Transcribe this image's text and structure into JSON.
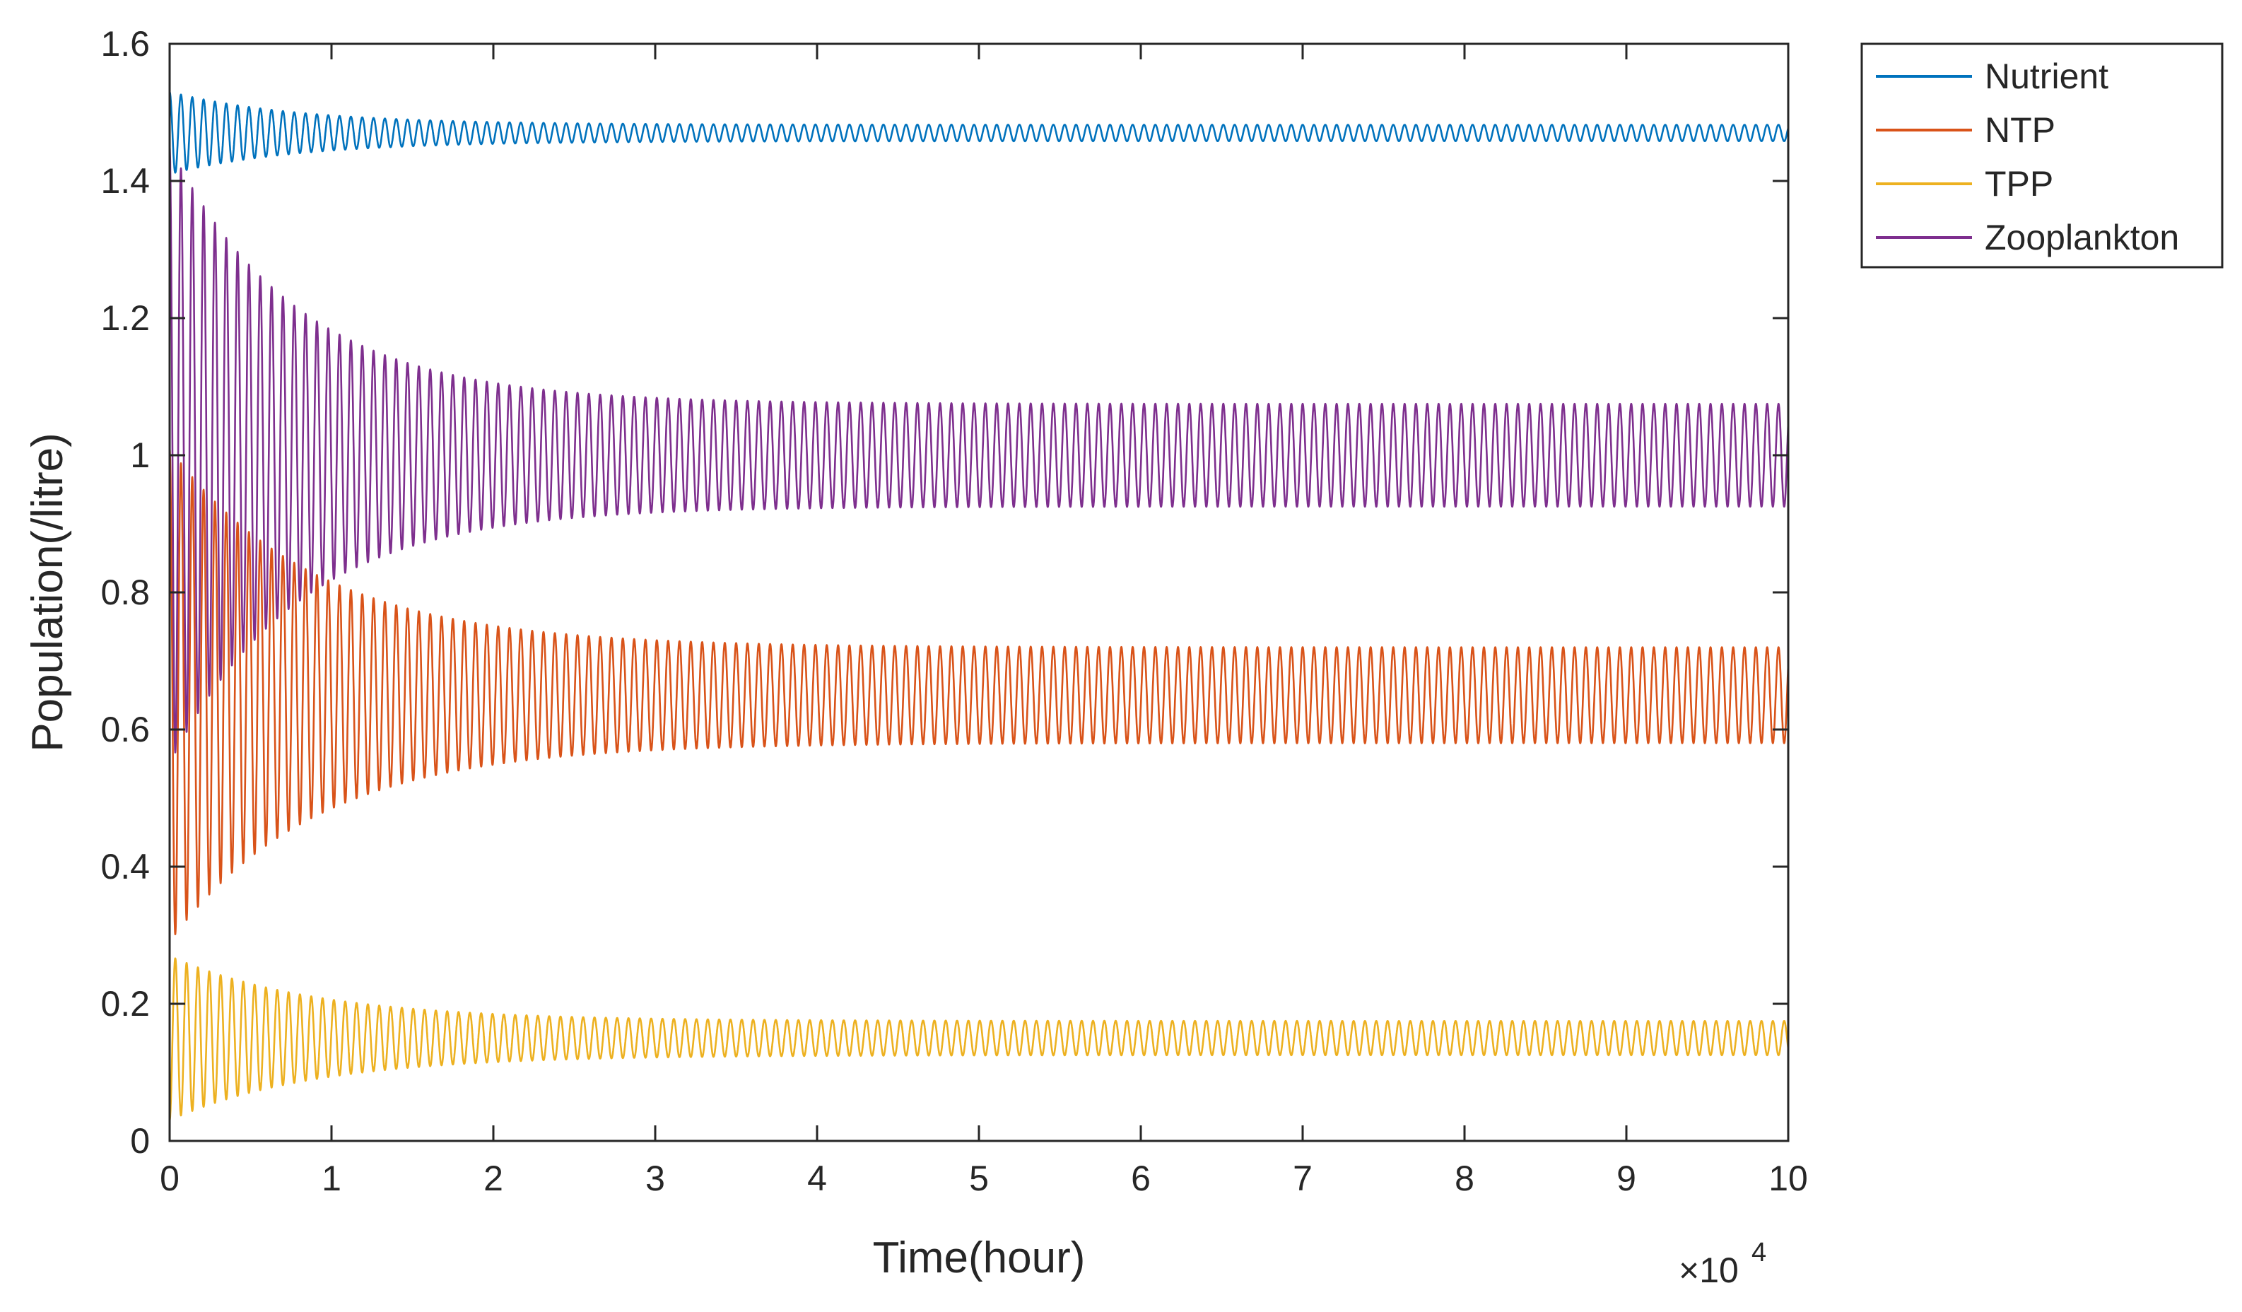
{
  "chart_data": {
    "type": "line",
    "xlabel": "Time(hour)",
    "ylabel": "Population(/litre)",
    "x_exponent_label": "×10",
    "x_exponent_power": "4",
    "xlim": [
      0,
      100000
    ],
    "ylim": [
      0,
      1.6
    ],
    "x_ticks": [
      0,
      1,
      2,
      3,
      4,
      5,
      6,
      7,
      8,
      9,
      10
    ],
    "x_tick_labels": [
      "0",
      "1",
      "2",
      "3",
      "4",
      "5",
      "6",
      "7",
      "8",
      "9",
      "10"
    ],
    "y_ticks": [
      0,
      0.2,
      0.4,
      0.6,
      0.8,
      1.0,
      1.2,
      1.4,
      1.6
    ],
    "y_tick_labels": [
      "0",
      "0.2",
      "0.4",
      "0.6",
      "0.8",
      "1",
      "1.2",
      "1.4",
      "1.6"
    ],
    "grid": false,
    "legend_position": "outside-top-right",
    "oscillation_period_hours": 700,
    "series": [
      {
        "name": "Nutrient",
        "color": "#0072BD",
        "start_value": 1.56,
        "center": 1.47,
        "initial_amplitude": 0.06,
        "final_amplitude": 0.012,
        "decay_hours": 8000
      },
      {
        "name": "NTP",
        "color": "#D95319",
        "start_value": 1.1,
        "center": 0.65,
        "initial_amplitude": 0.36,
        "final_amplitude": 0.07,
        "decay_hours": 9000
      },
      {
        "name": "TPP",
        "color": "#EDB120",
        "start_value": 0.03,
        "center": 0.15,
        "initial_amplitude": 0.12,
        "final_amplitude": 0.025,
        "decay_hours": 9000
      },
      {
        "name": "Zooplankton",
        "color": "#7E2F8E",
        "start_value": 1.55,
        "center": 1.0,
        "initial_amplitude": 0.45,
        "final_amplitude": 0.075,
        "decay_hours": 8000
      }
    ]
  }
}
